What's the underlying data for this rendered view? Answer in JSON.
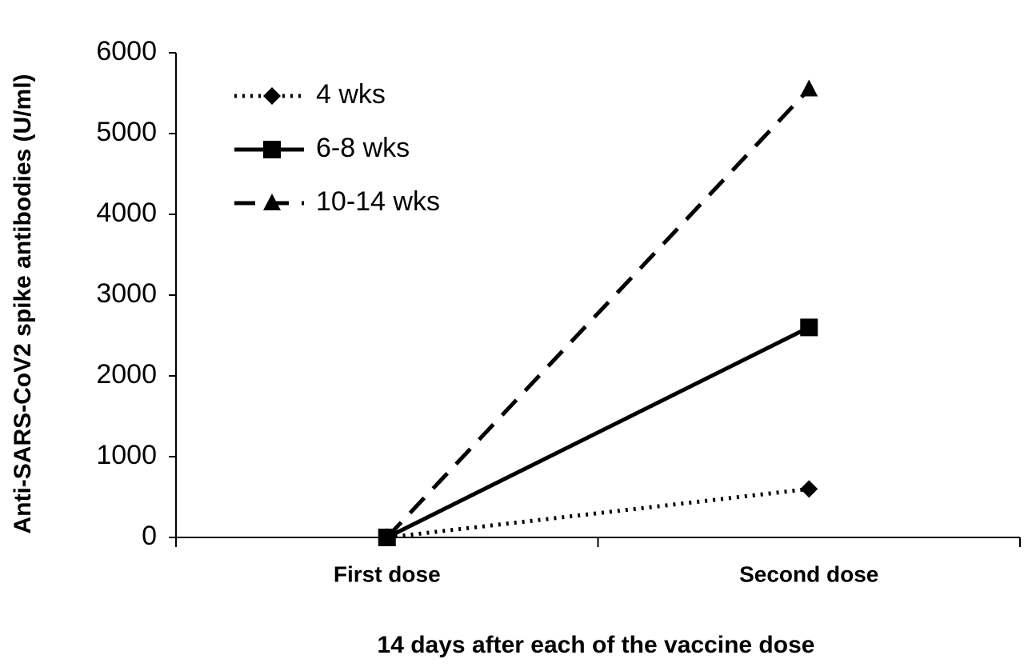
{
  "chart_data": {
    "type": "line",
    "x_label": "14 days after each of the vaccine dose",
    "y_label": "Anti-SARS-CoV2 spike antibodies (U/ml)",
    "categories": [
      "First dose",
      "Second dose"
    ],
    "series": [
      {
        "name": "4 wks",
        "color": "#000000",
        "line_style": "dotted",
        "marker": "diamond",
        "values": [
          0,
          600
        ]
      },
      {
        "name": "6-8 wks",
        "color": "#000000",
        "line_style": "solid",
        "marker": "square",
        "values": [
          0,
          2600
        ]
      },
      {
        "name": "10-14 wks",
        "color": "#000000",
        "line_style": "dashed",
        "marker": "triangle",
        "values": [
          0,
          5550
        ]
      }
    ],
    "ylim": [
      0,
      6000
    ],
    "yticks": [
      0,
      1000,
      2000,
      3000,
      4000,
      5000,
      6000
    ],
    "grid": false,
    "legend": "upper left"
  }
}
